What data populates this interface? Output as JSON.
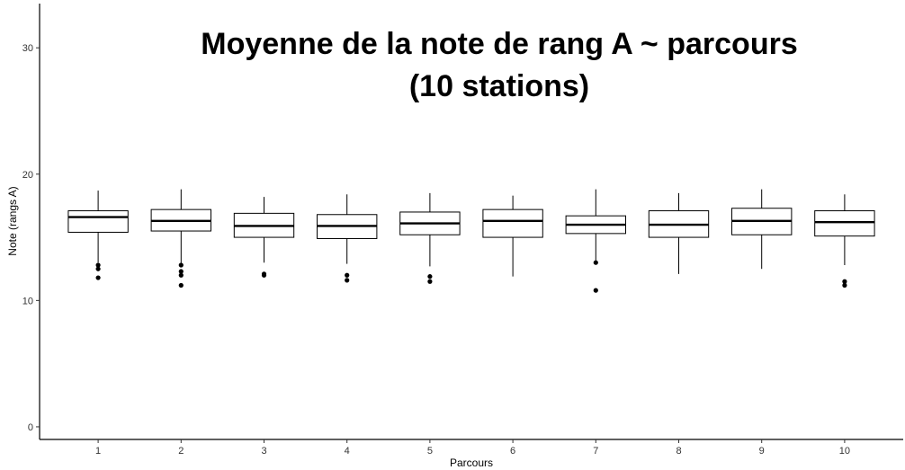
{
  "chart_data": {
    "type": "boxplot",
    "title_lines": [
      "Moyenne de la note de rang A ~ parcours",
      "(10 stations)"
    ],
    "xlabel": "Parcours",
    "ylabel": "Note (rangs A)",
    "ylim": [
      -1,
      33.5
    ],
    "yticks": [
      0,
      10,
      20,
      30
    ],
    "categories": [
      "1",
      "2",
      "3",
      "4",
      "5",
      "6",
      "7",
      "8",
      "9",
      "10"
    ],
    "boxes": [
      {
        "category": "1",
        "whisker_low": 13.0,
        "q1": 15.4,
        "median": 16.6,
        "q3": 17.1,
        "whisker_high": 18.7,
        "outliers": [
          12.8,
          12.5,
          11.8
        ]
      },
      {
        "category": "2",
        "whisker_low": 12.8,
        "q1": 15.5,
        "median": 16.3,
        "q3": 17.2,
        "whisker_high": 18.8,
        "outliers": [
          12.8,
          12.3,
          12.0,
          11.2
        ]
      },
      {
        "category": "3",
        "whisker_low": 13.0,
        "q1": 15.0,
        "median": 15.9,
        "q3": 16.9,
        "whisker_high": 18.2,
        "outliers": [
          12.1,
          12.0
        ]
      },
      {
        "category": "4",
        "whisker_low": 12.9,
        "q1": 14.9,
        "median": 15.9,
        "q3": 16.8,
        "whisker_high": 18.4,
        "outliers": [
          12.0,
          11.6
        ]
      },
      {
        "category": "5",
        "whisker_low": 12.7,
        "q1": 15.2,
        "median": 16.1,
        "q3": 17.0,
        "whisker_high": 18.5,
        "outliers": [
          11.9,
          11.5
        ]
      },
      {
        "category": "6",
        "whisker_low": 11.9,
        "q1": 15.0,
        "median": 16.3,
        "q3": 17.2,
        "whisker_high": 18.3,
        "outliers": []
      },
      {
        "category": "7",
        "whisker_low": 13.0,
        "q1": 15.3,
        "median": 16.0,
        "q3": 16.7,
        "whisker_high": 18.8,
        "outliers": [
          13.0,
          10.8
        ]
      },
      {
        "category": "8",
        "whisker_low": 12.1,
        "q1": 15.0,
        "median": 16.0,
        "q3": 17.1,
        "whisker_high": 18.5,
        "outliers": []
      },
      {
        "category": "9",
        "whisker_low": 12.5,
        "q1": 15.2,
        "median": 16.3,
        "q3": 17.3,
        "whisker_high": 18.8,
        "outliers": []
      },
      {
        "category": "10",
        "whisker_low": 12.8,
        "q1": 15.1,
        "median": 16.2,
        "q3": 17.1,
        "whisker_high": 18.4,
        "outliers": [
          11.5,
          11.2
        ]
      }
    ],
    "grid": false,
    "colors": {
      "box_fill": "#ffffff",
      "stroke": "#000000",
      "outlier": "#000000"
    }
  }
}
